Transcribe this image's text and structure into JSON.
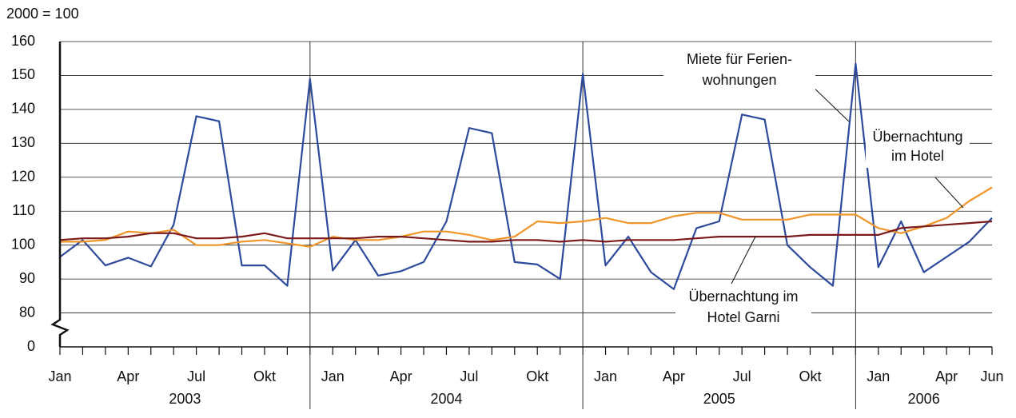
{
  "chart_data": {
    "type": "line",
    "unit_label": "2000 = 100",
    "categories": [
      "Jan",
      null,
      null,
      "Apr",
      null,
      null,
      "Jul",
      null,
      null,
      "Okt",
      null,
      null,
      "Jan",
      null,
      null,
      "Apr",
      null,
      null,
      "Jul",
      null,
      null,
      "Okt",
      null,
      null,
      "Jan",
      null,
      null,
      "Apr",
      null,
      null,
      "Jul",
      null,
      null,
      "Okt",
      null,
      null,
      "Jan",
      null,
      null,
      "Apr",
      null,
      "Jun"
    ],
    "years": [
      "2003",
      "2004",
      "2005",
      "2006"
    ],
    "ylim": [
      0,
      160
    ],
    "yticks": [
      0,
      80,
      90,
      100,
      110,
      120,
      130,
      140,
      150,
      160
    ],
    "y_break": [
      0,
      80
    ],
    "grid": true,
    "series": [
      {
        "name": [
          "Miete für Ferien-",
          "wohnungen"
        ],
        "color": "#2e4a9a",
        "values": [
          96.5,
          101.5,
          94,
          96.3,
          93.7,
          106,
          138,
          136.5,
          94,
          94,
          88,
          149,
          92.5,
          101.5,
          91,
          92.3,
          95,
          107,
          134.5,
          133,
          95,
          94.3,
          90,
          150.5,
          94,
          102.5,
          92,
          87,
          105,
          107,
          138.5,
          137,
          100,
          93.5,
          88,
          153.5,
          93.5,
          107,
          92,
          96.5,
          101,
          108
        ]
      },
      {
        "name": [
          "Übernachtung",
          "im Hotel"
        ],
        "color": "#f0952a",
        "values": [
          101,
          101,
          101.5,
          104,
          103.5,
          104.5,
          100,
          100,
          101,
          101.5,
          100.5,
          99.5,
          102.5,
          101.5,
          101.5,
          102.5,
          104,
          104,
          103,
          101.5,
          102.5,
          107,
          106.5,
          107,
          108,
          106.5,
          106.5,
          108.5,
          109.5,
          109.5,
          107.5,
          107.5,
          107.5,
          109,
          109,
          109,
          105,
          103.5,
          105.5,
          108,
          113,
          117
        ]
      },
      {
        "name": [
          "Übernachtung im",
          "Hotel Garni"
        ],
        "color": "#7a1a1a",
        "values": [
          101.5,
          102,
          102,
          102.5,
          103.5,
          103.5,
          102,
          102,
          102.5,
          103.5,
          102,
          102,
          102,
          102,
          102.5,
          102.5,
          102,
          101.5,
          101,
          101,
          101.5,
          101.5,
          101,
          101.5,
          101,
          101.5,
          101.5,
          101.5,
          102,
          102.5,
          102.5,
          102.5,
          102.5,
          103,
          103,
          103,
          103,
          105,
          105.5,
          106,
          106.5,
          107
        ]
      }
    ]
  }
}
